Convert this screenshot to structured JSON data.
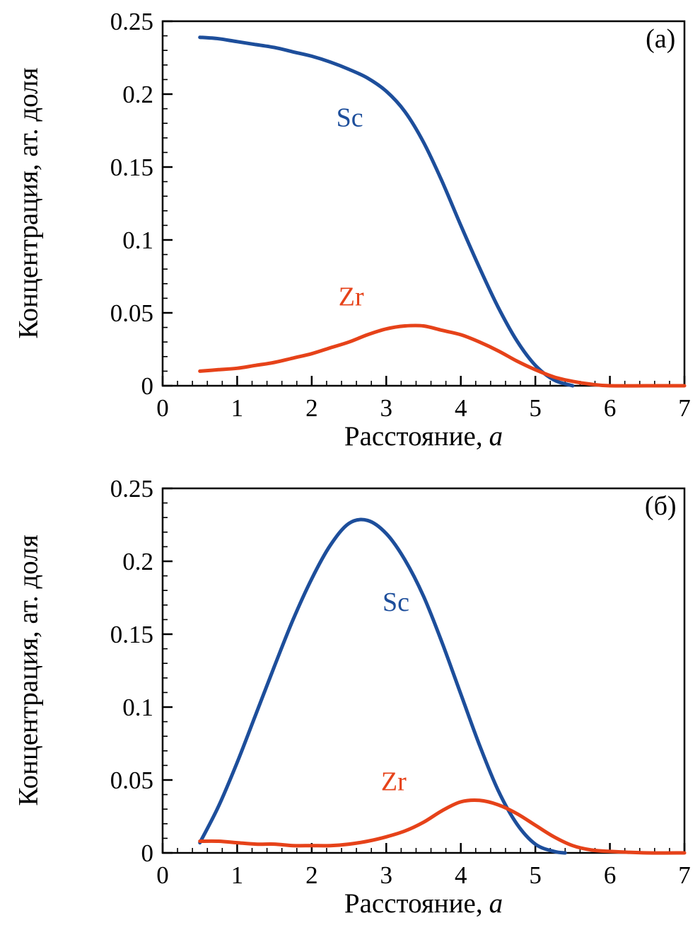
{
  "figure": {
    "background": "#ffffff"
  },
  "colors": {
    "axis": "#000000",
    "sc": "#1d4e9b",
    "zr": "#e64219"
  },
  "axis": {
    "xlim": [
      0,
      7
    ],
    "ylim": [
      0,
      0.25
    ],
    "x_major_ticks": [
      0,
      1,
      2,
      3,
      4,
      5,
      6,
      7
    ],
    "x_tick_labels": [
      "0",
      "1",
      "2",
      "3",
      "4",
      "5",
      "6",
      "7"
    ],
    "x_minor_step": 0.2,
    "y_major_ticks": [
      0,
      0.05,
      0.1,
      0.15,
      0.2,
      0.25
    ],
    "y_tick_labels": [
      "0",
      "0.05",
      "0.1",
      "0.15",
      "0.2",
      "0.25"
    ],
    "y_minor_step": 0.01,
    "xlabel_text": "Расстояние,",
    "xlabel_var": "a",
    "ylabel": "Концентрация, ат. доля",
    "grid": false
  },
  "chart_data": [
    {
      "type": "line",
      "panel_label": "(а)",
      "title": "",
      "xlabel": "Расстояние, a",
      "ylabel": "Концентрация, ат. доля",
      "xlim": [
        0,
        7
      ],
      "ylim": [
        0,
        0.25
      ],
      "legend": "inline-annotations",
      "series": [
        {
          "name": "Sc",
          "color": "#1d4e9b",
          "x": [
            0.5,
            0.75,
            1,
            1.25,
            1.5,
            1.75,
            2,
            2.25,
            2.5,
            2.75,
            3,
            3.25,
            3.5,
            3.75,
            4,
            4.25,
            4.5,
            4.75,
            5,
            5.25,
            5.5
          ],
          "y": [
            0.239,
            0.238,
            0.236,
            0.234,
            0.232,
            0.229,
            0.226,
            0.222,
            0.217,
            0.211,
            0.202,
            0.188,
            0.167,
            0.14,
            0.11,
            0.081,
            0.054,
            0.031,
            0.014,
            0.004,
            0.0
          ]
        },
        {
          "name": "Zr",
          "color": "#e64219",
          "x": [
            0.5,
            0.75,
            1,
            1.25,
            1.5,
            1.75,
            2,
            2.25,
            2.5,
            2.75,
            3,
            3.25,
            3.5,
            3.75,
            4,
            4.25,
            4.5,
            4.75,
            5,
            5.25,
            5.5,
            5.75,
            6,
            6.5,
            7
          ],
          "y": [
            0.01,
            0.011,
            0.012,
            0.014,
            0.016,
            0.019,
            0.022,
            0.026,
            0.03,
            0.035,
            0.039,
            0.041,
            0.041,
            0.038,
            0.035,
            0.03,
            0.024,
            0.017,
            0.011,
            0.006,
            0.003,
            0.001,
            0.0,
            0.0,
            0.0
          ]
        }
      ],
      "annotations": [
        {
          "text": "Sc",
          "x": 2.51,
          "y": 0.178,
          "color": "#1d4e9b"
        },
        {
          "text": "Zr",
          "x": 2.53,
          "y": 0.055,
          "color": "#e64219"
        },
        {
          "text": "(а)",
          "x": 6.68,
          "y": 0.232,
          "color": "#000000"
        }
      ]
    },
    {
      "type": "line",
      "panel_label": "(б)",
      "title": "",
      "xlabel": "Расстояние, a",
      "ylabel": "Концентрация, ат. доля",
      "xlim": [
        0,
        7
      ],
      "ylim": [
        0,
        0.25
      ],
      "legend": "inline-annotations",
      "series": [
        {
          "name": "Sc",
          "color": "#1d4e9b",
          "x": [
            0.5,
            0.75,
            1,
            1.25,
            1.5,
            1.75,
            2,
            2.25,
            2.5,
            2.75,
            3,
            3.25,
            3.5,
            3.75,
            4,
            4.25,
            4.5,
            4.75,
            5,
            5.25,
            5.4
          ],
          "y": [
            0.007,
            0.032,
            0.062,
            0.095,
            0.128,
            0.16,
            0.188,
            0.211,
            0.226,
            0.228,
            0.219,
            0.201,
            0.176,
            0.144,
            0.109,
            0.074,
            0.043,
            0.02,
            0.006,
            0.001,
            0.0
          ]
        },
        {
          "name": "Zr",
          "color": "#e64219",
          "x": [
            0.5,
            0.75,
            1,
            1.25,
            1.5,
            1.75,
            2,
            2.25,
            2.5,
            2.75,
            3,
            3.25,
            3.5,
            3.75,
            4,
            4.25,
            4.5,
            4.75,
            5,
            5.25,
            5.5,
            5.75,
            6,
            6.5,
            7
          ],
          "y": [
            0.008,
            0.008,
            0.007,
            0.006,
            0.006,
            0.005,
            0.005,
            0.005,
            0.006,
            0.008,
            0.011,
            0.015,
            0.021,
            0.029,
            0.035,
            0.036,
            0.033,
            0.027,
            0.019,
            0.011,
            0.005,
            0.002,
            0.001,
            0.0,
            0.0
          ]
        }
      ],
      "annotations": [
        {
          "text": "Sc",
          "x": 3.13,
          "y": 0.166,
          "color": "#1d4e9b"
        },
        {
          "text": "Zr",
          "x": 3.1,
          "y": 0.043,
          "color": "#e64219"
        },
        {
          "text": "(б)",
          "x": 6.68,
          "y": 0.232,
          "color": "#000000"
        }
      ]
    }
  ]
}
